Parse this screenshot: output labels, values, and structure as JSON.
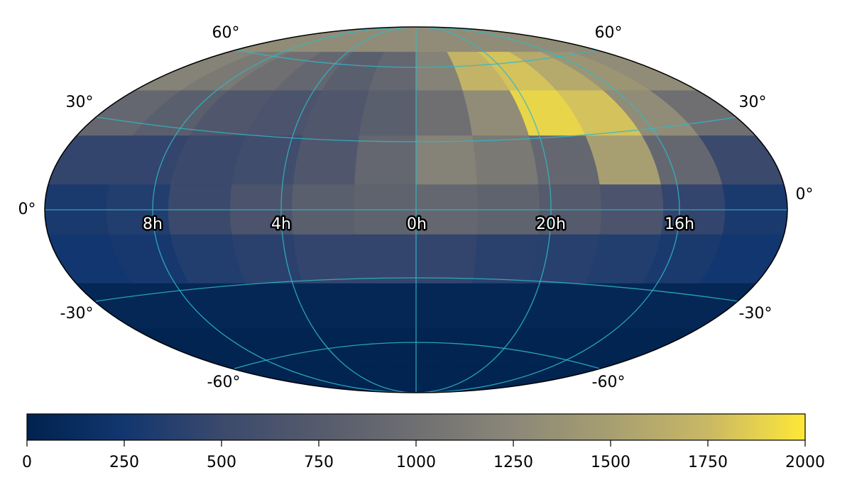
{
  "chart_data": {
    "type": "skymap",
    "dec_labels": [
      "60°",
      "30°",
      "0°",
      "-30°",
      "-60°"
    ],
    "ra_labels": [
      "8h",
      "4h",
      "0h",
      "20h",
      "16h"
    ],
    "map_values": [
      [
        1300,
        1300,
        1300,
        1300,
        1300,
        1300,
        1300,
        1300,
        1300,
        1300,
        1300,
        1300
      ],
      [
        1200,
        1100,
        1000,
        900,
        800,
        900,
        1200,
        1700,
        1800,
        1600,
        1400,
        1300
      ],
      [
        900,
        800,
        700,
        650,
        700,
        800,
        1000,
        1300,
        1900,
        1800,
        1300,
        1000
      ],
      [
        450,
        450,
        500,
        550,
        700,
        900,
        1200,
        1100,
        900,
        1500,
        900,
        500
      ],
      [
        300,
        350,
        500,
        650,
        800,
        850,
        900,
        850,
        750,
        650,
        450,
        300
      ],
      [
        250,
        280,
        350,
        400,
        450,
        450,
        450,
        400,
        380,
        350,
        300,
        250
      ],
      [
        60,
        60,
        60,
        60,
        60,
        60,
        60,
        60,
        60,
        60,
        60,
        60
      ],
      [
        20,
        20,
        20,
        20,
        20,
        20,
        20,
        20,
        20,
        20,
        20,
        20
      ],
      [
        20,
        20,
        20,
        20,
        20,
        20,
        20,
        20,
        20,
        20,
        20,
        20
      ]
    ],
    "colormap": [
      "#00224e",
      "#12366f",
      "#3b496c",
      "#555b6c",
      "#6f6f72",
      "#8b8778",
      "#a79f71",
      "#c9b865",
      "#fee838"
    ],
    "clim": [
      0,
      2000
    ],
    "cticks": [
      0,
      250,
      500,
      750,
      1000,
      1250,
      1500,
      1750,
      2000
    ]
  }
}
